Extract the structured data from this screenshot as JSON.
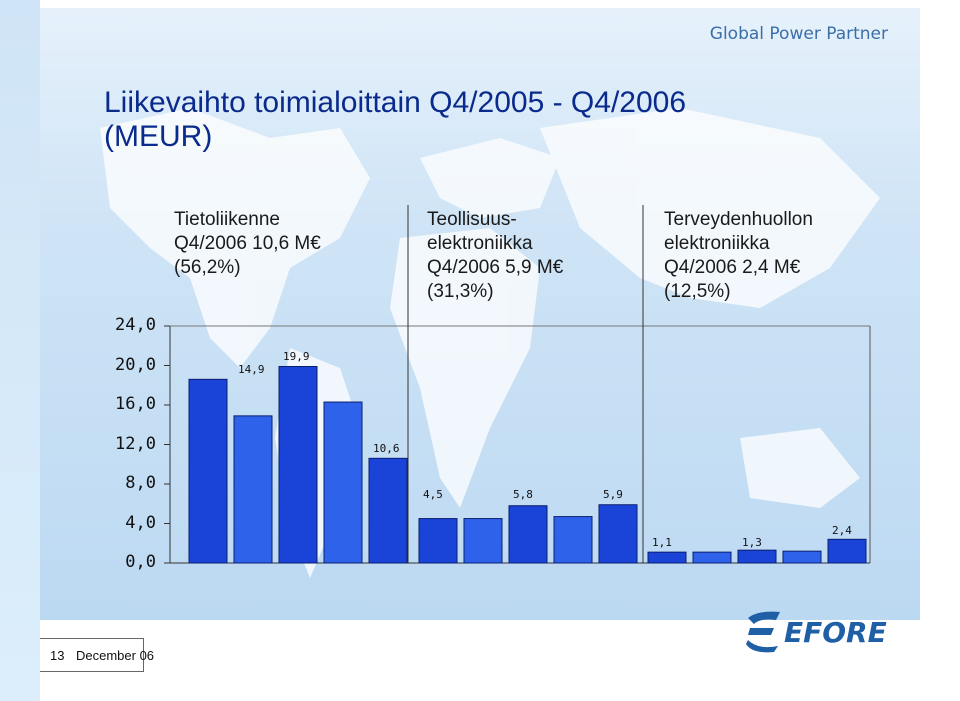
{
  "header": {
    "brand": "Global Power Partner",
    "title_line1": "Liikevaihto toimialoittain Q4/2005 - Q4/2006",
    "title_line2": "(MEUR)"
  },
  "segments": [
    {
      "lines": [
        "Tietoliikenne",
        "Q4/2006 10,6 M€",
        "(56,2%)"
      ]
    },
    {
      "lines": [
        "Teollisuus-",
        "elektroniikka",
        "Q4/2006 5,9 M€",
        "(31,3%)"
      ]
    },
    {
      "lines": [
        "Terveydenhuollon",
        "elektroniikka",
        "Q4/2006 2,4 M€",
        "(12,5%)"
      ]
    }
  ],
  "footer": {
    "page": "13",
    "date": "December 06"
  },
  "logo": {
    "text": "EFORE",
    "color": "#1f5fa6"
  },
  "colors": {
    "bar_highlight": "#1a44d8",
    "bar_normal": "#2e62ea",
    "title": "#0a2a8c"
  },
  "chart_data": {
    "type": "bar",
    "ylim": [
      0,
      24
    ],
    "yticks": [
      "0,0",
      "4,0",
      "8,0",
      "12,0",
      "16,0",
      "20,0",
      "24,0"
    ],
    "ytick_values": [
      0,
      4,
      8,
      12,
      16,
      20,
      24
    ],
    "groups": [
      {
        "values": [
          18.6,
          14.9,
          19.9,
          16.3,
          10.6
        ],
        "labels": [
          "",
          "14,9",
          "19,9",
          "",
          "10,6"
        ]
      },
      {
        "values": [
          4.5,
          4.5,
          5.8,
          4.7,
          5.9
        ],
        "labels": [
          "4,5",
          "",
          "5,8",
          "",
          "5,9"
        ]
      },
      {
        "values": [
          1.1,
          1.1,
          1.3,
          1.2,
          2.4
        ],
        "labels": [
          "1,1",
          "",
          "1,3",
          "",
          "2,4"
        ]
      }
    ]
  }
}
